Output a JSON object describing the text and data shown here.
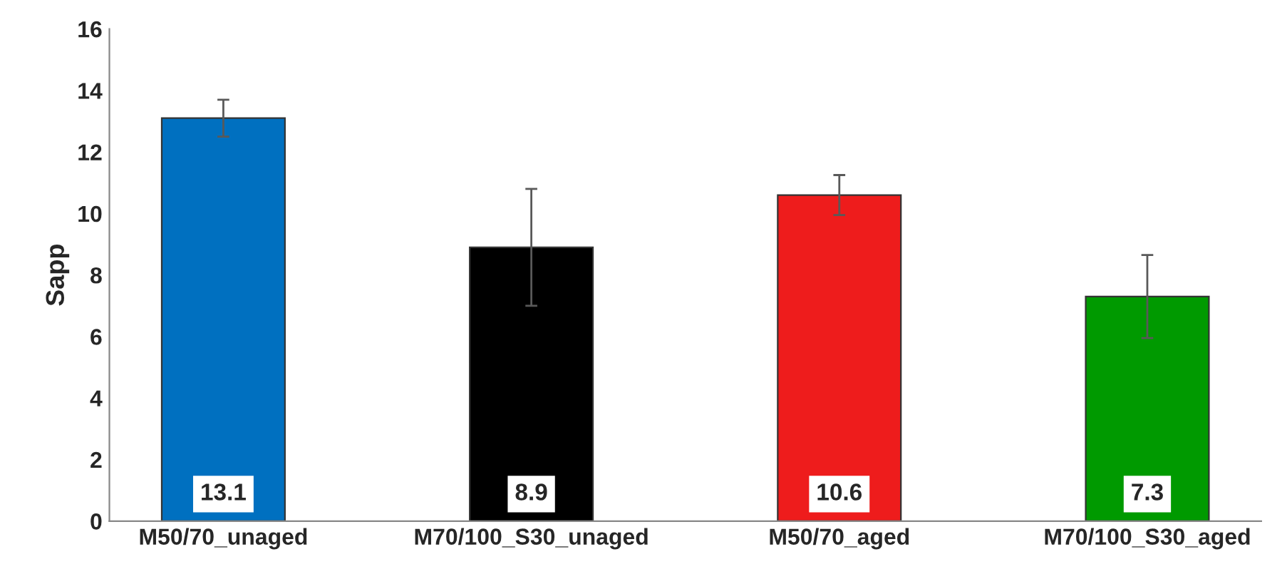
{
  "chart_data": {
    "type": "bar",
    "ylabel": "Sapp",
    "categories": [
      "M50/70_unaged",
      "M70/100_S30_unaged",
      "M50/70_aged",
      "M70/100_S30_aged"
    ],
    "values": [
      13.1,
      8.9,
      10.6,
      7.3
    ],
    "colors": [
      "#0070c0",
      "#000000",
      "#ee1c1c",
      "#009a00"
    ],
    "errors": [
      0.6,
      1.9,
      0.65,
      1.35
    ],
    "data_labels": true,
    "ylim": [
      0,
      16
    ],
    "yticks": [
      0,
      2,
      4,
      6,
      8,
      10,
      12,
      14,
      16
    ]
  }
}
